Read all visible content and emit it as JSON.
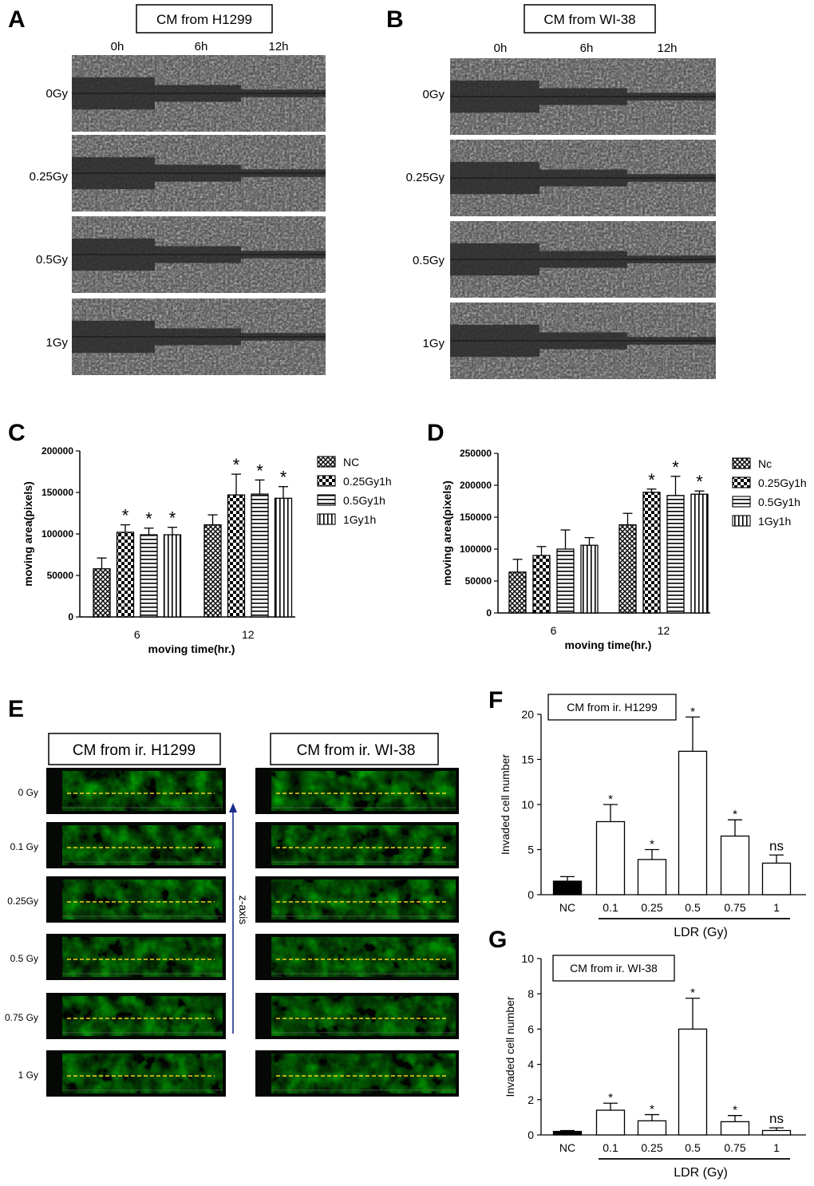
{
  "panels": {
    "A": {
      "letter": "A",
      "title": "CM  from H1299",
      "time_labels": [
        "0h",
        "6h",
        "12h"
      ],
      "dose_labels": [
        "0Gy",
        "0.25Gy",
        "0.5Gy",
        "1Gy"
      ]
    },
    "B": {
      "letter": "B",
      "title": "CM  from WI-38",
      "time_labels": [
        "0h",
        "6h",
        "12h"
      ],
      "dose_labels": [
        "0Gy",
        "0.25Gy",
        "0.5Gy",
        "1Gy"
      ]
    },
    "E": {
      "letter": "E",
      "title_left": "CM  from ir. H1299",
      "title_right": "CM  from ir. WI-38",
      "dose_labels": [
        "0 Gy",
        "0.1 Gy",
        "0.25Gy",
        "0.5 Gy",
        "0.75 Gy",
        "1 Gy"
      ],
      "axis_label": "z-axis"
    }
  },
  "chart_data": [
    {
      "panel": "C",
      "type": "bar",
      "categories": [
        "6",
        "12"
      ],
      "xlabel": "moving time(hr.)",
      "ylabel": "moving area(pixels)",
      "ylim": [
        0,
        200000
      ],
      "yticks": [
        "0",
        "50000",
        "100000",
        "150000",
        "200000"
      ],
      "series": [
        {
          "name": "NC",
          "values": [
            58000,
            111000
          ],
          "errors": [
            13000,
            12000
          ],
          "sig": [
            "",
            ""
          ]
        },
        {
          "name": "0.25Gy1h",
          "values": [
            102000,
            147000
          ],
          "errors": [
            9000,
            25000
          ],
          "sig": [
            "*",
            "*"
          ]
        },
        {
          "name": "0.5Gy1h",
          "values": [
            99000,
            148000
          ],
          "errors": [
            8000,
            17000
          ],
          "sig": [
            "*",
            "*"
          ]
        },
        {
          "name": "1Gy1h",
          "values": [
            99000,
            143000
          ],
          "errors": [
            9000,
            14000
          ],
          "sig": [
            "*",
            "*"
          ]
        }
      ]
    },
    {
      "panel": "D",
      "type": "bar",
      "categories": [
        "6",
        "12"
      ],
      "xlabel": "moving time(hr.)",
      "ylabel": "moving area(pixels)",
      "ylim": [
        0,
        250000
      ],
      "yticks": [
        "0",
        "50000",
        "100000",
        "150000",
        "200000",
        "250000"
      ],
      "series": [
        {
          "name": "Nc",
          "values": [
            64000,
            138000
          ],
          "errors": [
            20000,
            18000
          ],
          "sig": [
            "",
            ""
          ]
        },
        {
          "name": "0.25Gy1h",
          "values": [
            90000,
            189000
          ],
          "errors": [
            14000,
            5000
          ],
          "sig": [
            "",
            "*"
          ]
        },
        {
          "name": "0.5Gy1h",
          "values": [
            100000,
            184000
          ],
          "errors": [
            30000,
            30000
          ],
          "sig": [
            "",
            "*"
          ]
        },
        {
          "name": "1Gy1h",
          "values": [
            106000,
            186000
          ],
          "errors": [
            12000,
            5000
          ],
          "sig": [
            "",
            "*"
          ]
        }
      ]
    },
    {
      "panel": "F",
      "type": "bar",
      "title": "CM  from ir. H1299",
      "categories": [
        "NC",
        "0.1",
        "0.25",
        "0.5",
        "0.75",
        "1"
      ],
      "values": [
        1.5,
        8.1,
        3.9,
        15.9,
        6.5,
        3.5
      ],
      "errors": [
        0.5,
        1.9,
        1.1,
        3.8,
        1.8,
        0.9
      ],
      "sig": [
        "",
        "*",
        "*",
        "*",
        "*",
        "ns"
      ],
      "ylabel": "Invaded cell number",
      "group_label": "LDR (Gy)",
      "ylim": [
        0,
        20
      ],
      "yticks": [
        "0",
        "5",
        "10",
        "15",
        "20"
      ]
    },
    {
      "panel": "G",
      "type": "bar",
      "title": "CM  from ir. WI-38",
      "categories": [
        "NC",
        "0.1",
        "0.25",
        "0.5",
        "0.75",
        "1"
      ],
      "values": [
        0.2,
        1.4,
        0.8,
        6.0,
        0.75,
        0.25
      ],
      "errors": [
        0.05,
        0.4,
        0.35,
        1.75,
        0.35,
        0.15
      ],
      "sig": [
        "",
        "*",
        "*",
        "*",
        "*",
        "ns"
      ],
      "ylabel": "Invaded cell number",
      "group_label": "LDR (Gy)",
      "ylim": [
        0,
        10
      ],
      "yticks": [
        "0",
        "2",
        "4",
        "6",
        "8",
        "10"
      ]
    }
  ]
}
